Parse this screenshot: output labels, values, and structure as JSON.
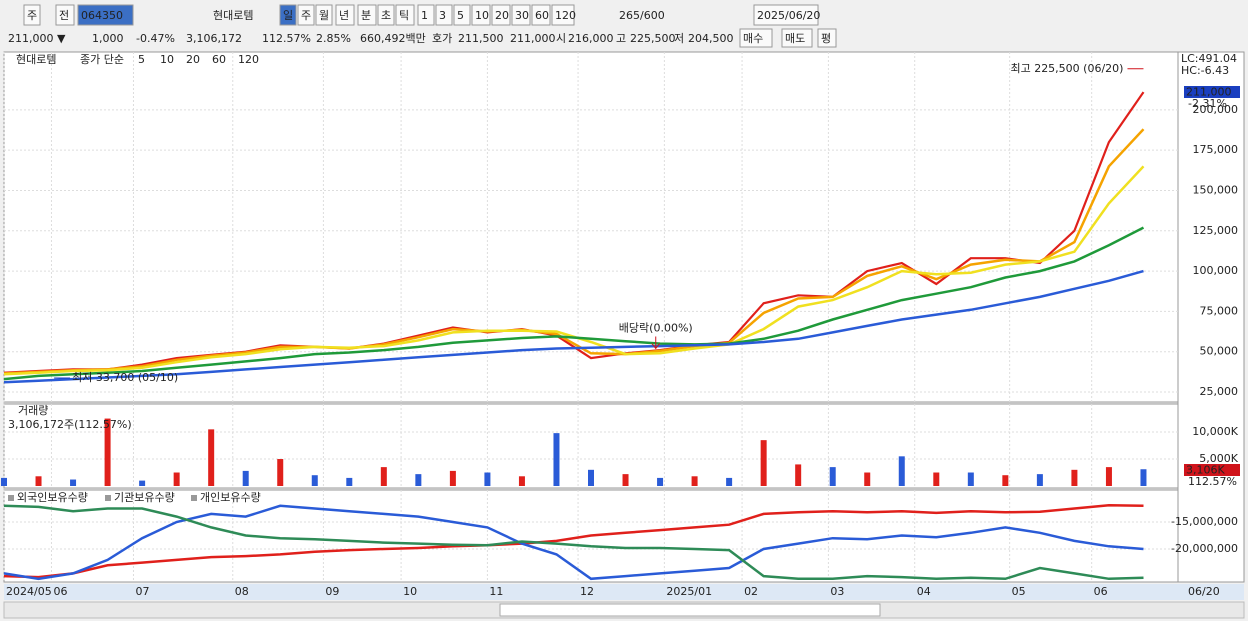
{
  "toolbar": {
    "row1": [
      "주",
      "전",
      "064350",
      "현대로템",
      "일",
      "주",
      "월",
      "년",
      "분",
      "초",
      "틱",
      "1",
      "3",
      "5",
      "10",
      "20",
      "30",
      "60",
      "120",
      "265",
      "/600",
      "2025/06/20"
    ],
    "row2": [
      "211,000 ▼",
      "1,000",
      "-0.47%",
      "3,106,172",
      "112.57%",
      "2.85%",
      "660,492백만",
      "호가",
      "211,500",
      "211,000",
      "시",
      "216,000",
      "고",
      "225,500",
      "저",
      "204,500",
      "매수",
      "매도",
      "평"
    ]
  },
  "chart_data": [
    {
      "type": "line",
      "name": "현대로템",
      "subtitle": "종가 단순",
      "x": [
        0,
        8,
        16,
        24,
        32,
        40,
        48,
        56,
        64,
        72,
        80,
        88,
        96,
        104,
        112,
        120,
        128,
        136,
        144,
        152,
        160,
        168,
        176,
        184,
        192,
        200,
        208,
        216,
        224,
        232,
        240,
        248,
        256,
        264
      ],
      "series": [
        {
          "name": "5",
          "color": "#e0201b",
          "values": [
            37000,
            38000,
            39000,
            39000,
            42000,
            46000,
            48000,
            50000,
            54000,
            53000,
            52000,
            55000,
            60000,
            65000,
            62000,
            64000,
            60000,
            46000,
            49000,
            51000,
            54000,
            56000,
            80000,
            85000,
            84000,
            100000,
            105000,
            92000,
            108000,
            108000,
            105000,
            125000,
            180000,
            211000
          ]
        },
        {
          "name": "10",
          "color": "#f5a300",
          "values": [
            36500,
            37500,
            38500,
            39000,
            41000,
            45000,
            47500,
            49500,
            53000,
            53000,
            52000,
            54500,
            59000,
            64000,
            62500,
            63500,
            61000,
            49000,
            48500,
            50500,
            53500,
            55500,
            74000,
            83000,
            84000,
            97000,
            103000,
            95000,
            104000,
            107000,
            106000,
            118000,
            165000,
            188000
          ]
        },
        {
          "name": "20",
          "color": "#f0e020",
          "values": [
            36000,
            37000,
            38000,
            38500,
            40000,
            43500,
            46500,
            48500,
            51500,
            53000,
            52500,
            53500,
            57000,
            62000,
            63000,
            63000,
            62500,
            56000,
            48500,
            49000,
            52000,
            54500,
            64000,
            78000,
            82000,
            90000,
            100000,
            98000,
            99000,
            104000,
            106000,
            112000,
            142000,
            165000
          ]
        },
        {
          "name": "60",
          "color": "#1f9a3a",
          "values": [
            33000,
            35000,
            36000,
            37000,
            38000,
            40000,
            42000,
            44000,
            46000,
            48500,
            49500,
            51000,
            53000,
            55500,
            57000,
            58500,
            59500,
            58000,
            56500,
            55000,
            54500,
            55000,
            58000,
            63000,
            70000,
            76000,
            82000,
            86000,
            90000,
            96000,
            100000,
            106000,
            116000,
            127000
          ]
        },
        {
          "name": "120",
          "color": "#2a5bd7",
          "values": [
            31000,
            32000,
            33000,
            34000,
            35000,
            36000,
            37500,
            39000,
            40500,
            42000,
            43500,
            45000,
            46500,
            48000,
            49500,
            51000,
            52000,
            52500,
            53000,
            53500,
            54000,
            54500,
            56000,
            58000,
            62000,
            66000,
            70000,
            73000,
            76000,
            80000,
            84000,
            89000,
            94000,
            100000
          ]
        }
      ],
      "xlim": [
        0,
        272
      ],
      "ylim": [
        18800,
        235900
      ],
      "yticks": [
        {
          "value": 25000,
          "label": "25,000"
        },
        {
          "value": 50000,
          "label": "50,000"
        },
        {
          "value": 75000,
          "label": "75,000"
        },
        {
          "value": 100000,
          "label": "100,000"
        },
        {
          "value": 125000,
          "label": "125,000"
        },
        {
          "value": 150000,
          "label": "150,000"
        },
        {
          "value": 175000,
          "label": "175,000"
        },
        {
          "value": 200000,
          "label": "200,000"
        }
      ],
      "high": {
        "label": "최고 225,500 (06/20)",
        "value": 225500,
        "x": 264
      },
      "low": {
        "label": "최저 33,700 (05/10)",
        "value": 33700,
        "x": 13
      },
      "ex_dividend": {
        "label": "배당락(0.00%)",
        "x": 151,
        "value": 52000
      },
      "last_label": "211,000",
      "last_change": "-2.31%",
      "lc": "LC:491.04",
      "hc": "HC:-6.43"
    },
    {
      "type": "bar",
      "title": "거래량",
      "subtitle": "3,106,172주(112.57%)",
      "x": [
        0,
        8,
        16,
        24,
        32,
        40,
        48,
        56,
        64,
        72,
        80,
        88,
        96,
        104,
        112,
        120,
        128,
        136,
        144,
        152,
        160,
        168,
        176,
        184,
        192,
        200,
        208,
        216,
        224,
        232,
        240,
        248,
        256,
        264
      ],
      "values": [
        1500,
        1800,
        1200,
        12500,
        1000,
        2500,
        10500,
        2800,
        5000,
        2000,
        1500,
        3500,
        2200,
        2800,
        2500,
        1800,
        9800,
        3000,
        2200,
        1500,
        1800,
        1500,
        8500,
        4000,
        3500,
        2500,
        5500,
        2500,
        2500,
        2000,
        2200,
        3000,
        3500,
        3106
      ],
      "colors": [
        "#2a5bd7",
        "#e0201b",
        "#2a5bd7",
        "#e0201b",
        "#2a5bd7",
        "#e0201b",
        "#e0201b",
        "#2a5bd7",
        "#e0201b",
        "#2a5bd7",
        "#2a5bd7",
        "#e0201b",
        "#2a5bd7",
        "#e0201b",
        "#2a5bd7",
        "#e0201b",
        "#2a5bd7",
        "#2a5bd7",
        "#e0201b",
        "#2a5bd7",
        "#e0201b",
        "#2a5bd7",
        "#e0201b",
        "#e0201b",
        "#2a5bd7",
        "#e0201b",
        "#2a5bd7",
        "#e0201b",
        "#2a5bd7",
        "#e0201b",
        "#2a5bd7",
        "#e0201b",
        "#e0201b",
        "#2a5bd7"
      ],
      "xlim": [
        0,
        272
      ],
      "ylim": [
        0,
        15200
      ],
      "yticks": [
        {
          "value": 5000,
          "label": "5,000K"
        },
        {
          "value": 10000,
          "label": "10,000K"
        }
      ],
      "last_label": "3,106K",
      "last_change": "112.57%"
    },
    {
      "type": "line",
      "x": [
        0,
        8,
        16,
        24,
        32,
        40,
        48,
        56,
        64,
        72,
        80,
        88,
        96,
        104,
        112,
        120,
        128,
        136,
        144,
        152,
        160,
        168,
        176,
        184,
        192,
        200,
        208,
        216,
        224,
        232,
        240,
        248,
        256,
        264
      ],
      "series": [
        {
          "name": "외국인보유수량",
          "color": "#e0201b",
          "values": [
            -25000000,
            -25200000,
            -24500000,
            -23000000,
            -22500000,
            -22000000,
            -21500000,
            -21300000,
            -21000000,
            -20500000,
            -20200000,
            -20000000,
            -19800000,
            -19500000,
            -19300000,
            -19000000,
            -18500000,
            -17500000,
            -17000000,
            -16500000,
            -16000000,
            -15500000,
            -13500000,
            -13200000,
            -13000000,
            -13200000,
            -13000000,
            -13300000,
            -13000000,
            -13200000,
            -13100000,
            -12500000,
            -11900000,
            -12000000
          ]
        },
        {
          "name": "기관보유수량",
          "color": "#2a5bd7",
          "values": [
            -24500000,
            -25500000,
            -24500000,
            -22000000,
            -18000000,
            -15000000,
            -13500000,
            -14000000,
            -12000000,
            -12500000,
            -13000000,
            -13500000,
            -14000000,
            -15000000,
            -16000000,
            -19000000,
            -21000000,
            -25500000,
            -25000000,
            -24500000,
            -24000000,
            -23500000,
            -20000000,
            -19000000,
            -18000000,
            -18200000,
            -17500000,
            -17800000,
            -17000000,
            -16000000,
            -17000000,
            -18500000,
            -19500000,
            -20000000
          ]
        },
        {
          "name": "개인보유수량",
          "color": "#2e8b57",
          "values": [
            -12000000,
            -12200000,
            -13000000,
            -12500000,
            -12500000,
            -14000000,
            -16000000,
            -17500000,
            -18000000,
            -18200000,
            -18500000,
            -18800000,
            -19000000,
            -19200000,
            -19300000,
            -18600000,
            -19000000,
            -19500000,
            -19800000,
            -19800000,
            -20000000,
            -20200000,
            -25000000,
            -25500000,
            -25500000,
            -25000000,
            -25200000,
            -25500000,
            -25300000,
            -25500000,
            -23500000,
            -24500000,
            -25500000,
            -25300000
          ]
        }
      ],
      "xlim": [
        0,
        272
      ],
      "ylim": [
        -26100000,
        -9070000
      ],
      "yticks": [
        {
          "value": -15000000,
          "label": "-15,000,000"
        },
        {
          "value": -20000000,
          "label": "-20,000,000"
        }
      ],
      "xticks": [
        {
          "value": 0,
          "label": "2024/05"
        },
        {
          "value": 11,
          "label": "06"
        },
        {
          "value": 30,
          "label": "07"
        },
        {
          "value": 53,
          "label": "08"
        },
        {
          "value": 74,
          "label": "09"
        },
        {
          "value": 92,
          "label": "10"
        },
        {
          "value": 112,
          "label": "11"
        },
        {
          "value": 133,
          "label": "12"
        },
        {
          "value": 153,
          "label": "2025/01"
        },
        {
          "value": 171,
          "label": "02"
        },
        {
          "value": 191,
          "label": "03"
        },
        {
          "value": 211,
          "label": "04"
        },
        {
          "value": 233,
          "label": "05"
        },
        {
          "value": 252,
          "label": "06"
        }
      ],
      "x_end_label": "06/20"
    }
  ]
}
